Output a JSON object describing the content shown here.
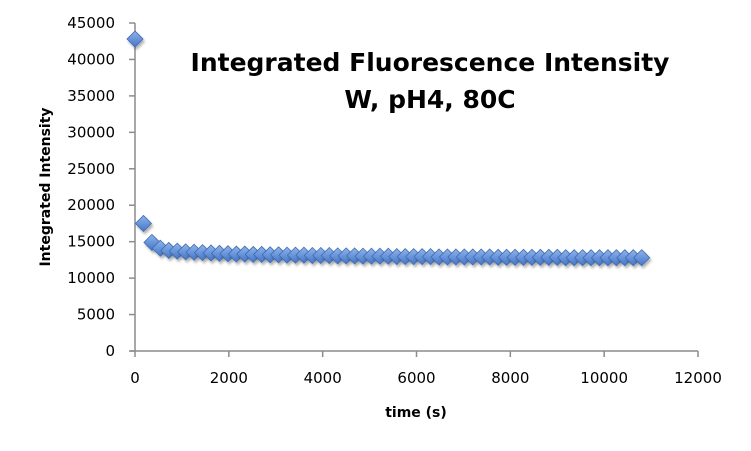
{
  "chart_data": {
    "type": "scatter",
    "title": "Integrated Fluorescence Intensity",
    "subtitle": "W, pH4, 80C",
    "xlabel": "time (s)",
    "ylabel": "Integrated Intensity",
    "xlim": [
      0,
      12000
    ],
    "ylim": [
      0,
      45000
    ],
    "x_ticks": [
      0,
      2000,
      4000,
      6000,
      8000,
      10000,
      12000
    ],
    "y_ticks": [
      0,
      5000,
      10000,
      15000,
      20000,
      25000,
      30000,
      35000,
      40000,
      45000
    ],
    "grid": false,
    "legend": null,
    "marker": "diamond",
    "marker_color": "#5b8fdc",
    "series": [
      {
        "name": "W, pH4, 80C",
        "x": [
          0,
          180,
          360,
          540,
          720,
          900,
          1080,
          1260,
          1440,
          1620,
          1800,
          1980,
          2160,
          2340,
          2520,
          2700,
          2880,
          3060,
          3240,
          3420,
          3600,
          3780,
          3960,
          4140,
          4320,
          4500,
          4680,
          4860,
          5040,
          5220,
          5400,
          5580,
          5760,
          5940,
          6120,
          6300,
          6480,
          6660,
          6840,
          7020,
          7200,
          7380,
          7560,
          7740,
          7920,
          8100,
          8280,
          8460,
          8640,
          8820,
          9000,
          9180,
          9360,
          9540,
          9720,
          9900,
          10080,
          10260,
          10440,
          10620,
          10800
        ],
        "values": [
          42800,
          17500,
          14900,
          14100,
          13800,
          13700,
          13600,
          13550,
          13500,
          13450,
          13400,
          13350,
          13300,
          13300,
          13250,
          13250,
          13200,
          13200,
          13150,
          13150,
          13150,
          13100,
          13100,
          13100,
          13050,
          13050,
          13050,
          13000,
          13000,
          13000,
          13000,
          12950,
          12950,
          12950,
          12950,
          12950,
          12900,
          12900,
          12900,
          12900,
          12900,
          12900,
          12900,
          12850,
          12850,
          12850,
          12850,
          12850,
          12850,
          12850,
          12850,
          12800,
          12800,
          12800,
          12800,
          12800,
          12800,
          12800,
          12800,
          12800,
          12800
        ]
      }
    ]
  }
}
